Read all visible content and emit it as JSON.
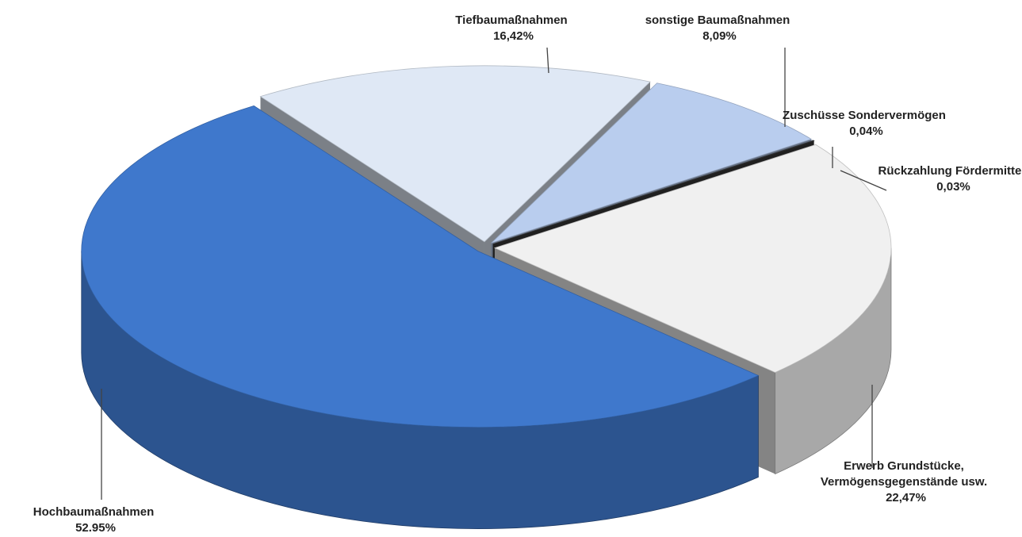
{
  "chart_data": {
    "type": "pie",
    "categories": [
      "Tiefbaumaßnahmen",
      "sonstige Baumaßnahmen",
      "Zuschüsse Sondervermögen",
      "Rückzahlung Fördermittel",
      "Erwerb Grundstücke, Vermögensgegenstände usw.",
      "Hochbaumaßnahmen"
    ],
    "values": [
      16.42,
      8.09,
      0.04,
      0.03,
      22.47,
      52.95
    ],
    "value_labels": [
      "16,42%",
      "8,09%",
      "0,04%",
      "0,03%",
      "22,47%",
      "52.95%"
    ],
    "colors": [
      "#dfe8f5",
      "#b9cdee",
      "#6f7f99",
      "#3a3a3a",
      "#f0f0f0",
      "#3f78cc"
    ]
  }
}
